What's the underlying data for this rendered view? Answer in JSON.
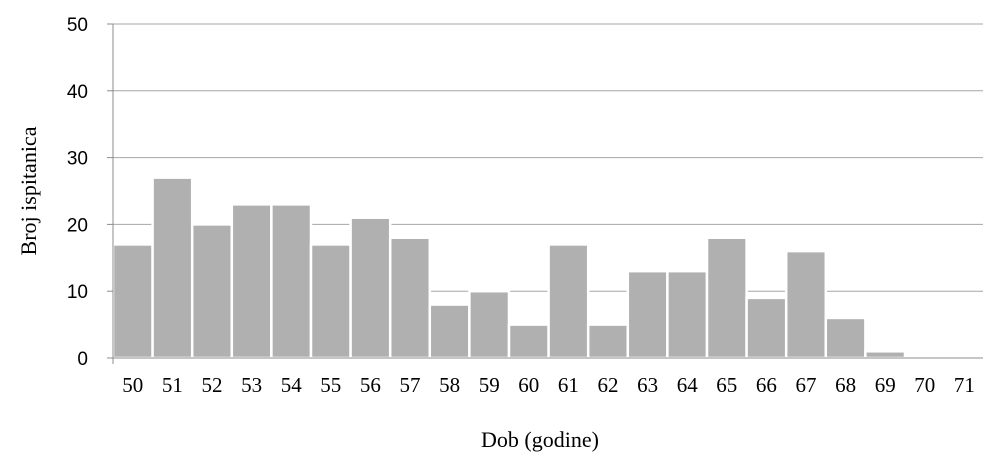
{
  "chart_data": {
    "type": "bar",
    "title": "",
    "xlabel": "Dob (godine)",
    "ylabel": "Broj ispitanica",
    "ylim": [
      0,
      50
    ],
    "yticks": [
      0,
      10,
      20,
      30,
      40,
      50
    ],
    "grid": true,
    "legend": "none",
    "bar_color": "#b0b0b0",
    "categories": [
      "50",
      "51",
      "52",
      "53",
      "54",
      "55",
      "56",
      "57",
      "58",
      "59",
      "60",
      "61",
      "62",
      "63",
      "64",
      "65",
      "66",
      "67",
      "68",
      "69",
      "70",
      "71"
    ],
    "values": [
      17,
      27,
      20,
      23,
      23,
      17,
      21,
      18,
      8,
      10,
      5,
      17,
      5,
      13,
      13,
      18,
      9,
      16,
      6,
      1,
      0,
      0
    ]
  }
}
